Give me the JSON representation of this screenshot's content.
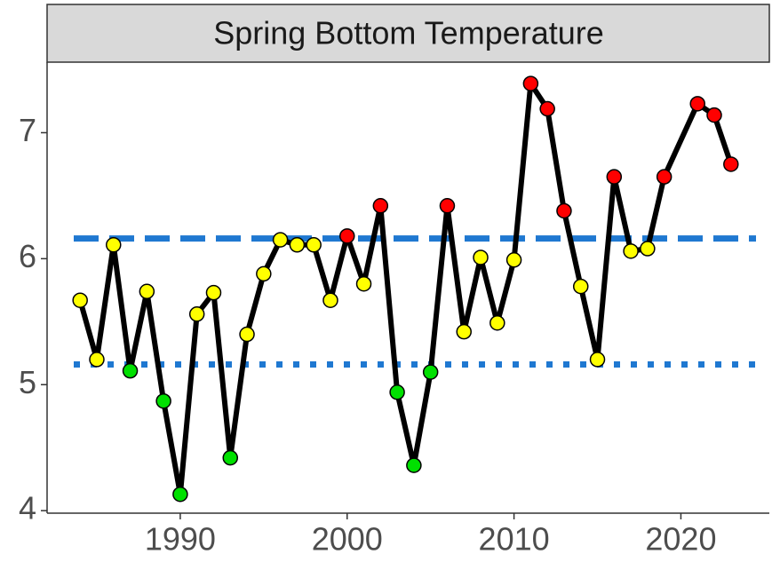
{
  "chart_data": {
    "type": "line",
    "title": "Spring Bottom Temperature",
    "x": [
      1984,
      1985,
      1986,
      1987,
      1988,
      1989,
      1990,
      1991,
      1992,
      1993,
      1994,
      1995,
      1996,
      1997,
      1998,
      1999,
      2000,
      2001,
      2002,
      2003,
      2004,
      2005,
      2006,
      2007,
      2008,
      2009,
      2010,
      2011,
      2012,
      2013,
      2014,
      2015,
      2016,
      2017,
      2018,
      2019,
      2021,
      2022,
      2023
    ],
    "series": [
      {
        "color": "#000000",
        "values": [
          5.67,
          5.2,
          6.11,
          5.11,
          5.74,
          4.87,
          4.13,
          5.56,
          5.73,
          4.42,
          5.4,
          5.88,
          6.15,
          6.11,
          6.11,
          5.67,
          6.18,
          5.8,
          6.42,
          4.94,
          4.36,
          5.1,
          6.42,
          5.42,
          6.01,
          5.49,
          5.99,
          7.39,
          7.19,
          6.38,
          5.78,
          5.2,
          6.65,
          6.06,
          6.08,
          6.65,
          7.23,
          7.14,
          6.75
        ],
        "point_colors": [
          "#ffff00",
          "#ffff00",
          "#ffff00",
          "#00e000",
          "#ffff00",
          "#00e000",
          "#00e000",
          "#ffff00",
          "#ffff00",
          "#00e000",
          "#ffff00",
          "#ffff00",
          "#ffff00",
          "#ffff00",
          "#ffff00",
          "#ffff00",
          "#ff0000",
          "#ffff00",
          "#ff0000",
          "#00e000",
          "#00e000",
          "#00e000",
          "#ff0000",
          "#ffff00",
          "#ffff00",
          "#ffff00",
          "#ffff00",
          "#ff0000",
          "#ff0000",
          "#ff0000",
          "#ffff00",
          "#ffff00",
          "#ff0000",
          "#ffff00",
          "#ffff00",
          "#ff0000",
          "#ff0000",
          "#ff0000",
          "#ff0000"
        ]
      }
    ],
    "reference_lines": [
      {
        "value": 6.16,
        "style": "dashed",
        "color": "#1f78d1"
      },
      {
        "value": 5.16,
        "style": "dotted",
        "color": "#1f78d1"
      }
    ],
    "xlim": [
      1982.02,
      2025.3
    ],
    "xticks": [
      1990,
      2000,
      2010,
      2020
    ],
    "ylim": [
      3.98,
      7.56
    ],
    "yticks": [
      4,
      5,
      6,
      7
    ]
  }
}
